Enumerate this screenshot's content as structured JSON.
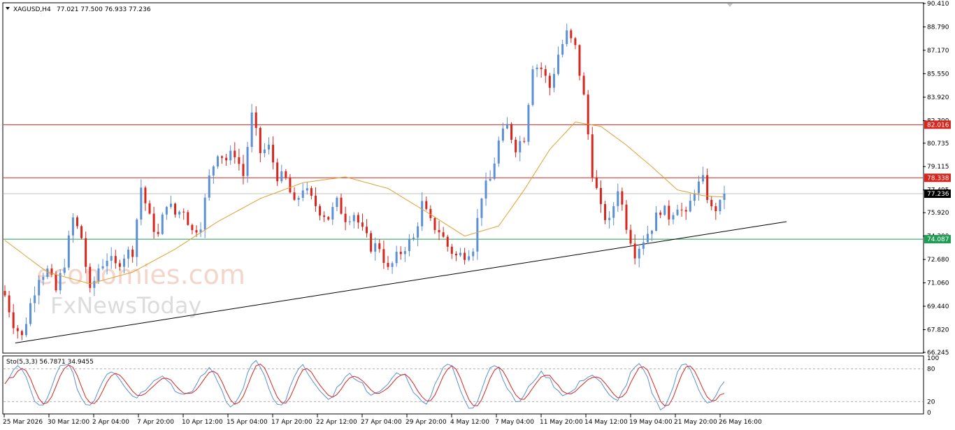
{
  "header": {
    "symbol": "XAGUSD,H4",
    "ohlc": "77.021 77.500 76.933 77.236"
  },
  "watermark": {
    "line1": "economies.com",
    "line2": "FxNewsToday"
  },
  "indicator": {
    "label": "Sto(5,3,3) 56.7871 34.9455",
    "levels": [
      "100",
      "80",
      "20",
      "0"
    ]
  },
  "colors": {
    "bull": "#5b8fd6",
    "bear": "#d7261e",
    "ma": "#e0a030",
    "resistance": "#d7261e",
    "support": "#1f9d55",
    "trendline": "#000000",
    "current": "#000000",
    "stoch_main": "#5b8fd6",
    "stoch_signal": "#d7261e"
  },
  "chart_data": {
    "type": "candlestick",
    "symbol": "XAGUSD",
    "timeframe": "H4",
    "y_ticks": [
      "90.410",
      "88.790",
      "87.170",
      "85.550",
      "83.920",
      "82.300",
      "80.735",
      "79.115",
      "77.495",
      "75.920",
      "74.300",
      "72.680",
      "71.060",
      "69.440",
      "67.820",
      "66.245"
    ],
    "ylim": [
      66.245,
      90.41
    ],
    "x_ticks": [
      "25 Mar 2026",
      "30 Mar 12:00",
      "2 Apr 04:00",
      "7 Apr 20:00",
      "10 Apr 12:00",
      "15 Apr 04:00",
      "17 Apr 20:00",
      "22 Apr 12:00",
      "27 Apr 04:00",
      "29 Apr 20:00",
      "4 May 12:00",
      "7 May 04:00",
      "11 May 20:00",
      "14 May 12:00",
      "19 May 04:00",
      "21 May 20:00",
      "26 May 16:00"
    ],
    "price_levels": [
      {
        "value": "82.016",
        "role": "resistance"
      },
      {
        "value": "78.338",
        "role": "resistance"
      },
      {
        "value": "77.236",
        "role": "current"
      },
      {
        "value": "74.087",
        "role": "support"
      }
    ],
    "trendline": {
      "start": [
        "25 Mar 2026",
        66.9
      ],
      "end": [
        "26 May 16:00",
        75.3
      ]
    },
    "close_path": [
      [
        0,
        70.2
      ],
      [
        2,
        68.3
      ],
      [
        4,
        67.3
      ],
      [
        6,
        69.6
      ],
      [
        8,
        71.6
      ],
      [
        10,
        71.9
      ],
      [
        12,
        70.5
      ],
      [
        14,
        72.5
      ],
      [
        16,
        75.5
      ],
      [
        18,
        74.2
      ],
      [
        20,
        70.3
      ],
      [
        22,
        72.1
      ],
      [
        24,
        72.8
      ],
      [
        26,
        72.2
      ],
      [
        28,
        73.0
      ],
      [
        30,
        73.3
      ],
      [
        32,
        77.7
      ],
      [
        34,
        75.5
      ],
      [
        36,
        74.3
      ],
      [
        38,
        76.7
      ],
      [
        40,
        75.8
      ],
      [
        42,
        76.2
      ],
      [
        44,
        74.6
      ],
      [
        46,
        75.2
      ],
      [
        48,
        78.3
      ],
      [
        50,
        80.2
      ],
      [
        52,
        79.6
      ],
      [
        54,
        80.1
      ],
      [
        56,
        78.5
      ],
      [
        58,
        82.6
      ],
      [
        60,
        80.1
      ],
      [
        62,
        80.4
      ],
      [
        64,
        78.5
      ],
      [
        66,
        78.2
      ],
      [
        68,
        76.4
      ],
      [
        70,
        77.7
      ],
      [
        72,
        76.8
      ],
      [
        74,
        76.1
      ],
      [
        76,
        75.6
      ],
      [
        78,
        76.6
      ],
      [
        80,
        75.6
      ],
      [
        82,
        75.9
      ],
      [
        84,
        74.6
      ],
      [
        86,
        73.6
      ],
      [
        88,
        73.6
      ],
      [
        90,
        71.9
      ],
      [
        92,
        72.8
      ],
      [
        94,
        73.6
      ],
      [
        96,
        74.1
      ],
      [
        98,
        76.5
      ],
      [
        100,
        75.2
      ],
      [
        102,
        74.7
      ],
      [
        104,
        73.6
      ],
      [
        106,
        72.9
      ],
      [
        108,
        73.1
      ],
      [
        110,
        73.6
      ],
      [
        112,
        77.2
      ],
      [
        114,
        78.2
      ],
      [
        116,
        80.8
      ],
      [
        118,
        81.9
      ],
      [
        120,
        80.5
      ],
      [
        122,
        81.2
      ],
      [
        124,
        86.2
      ],
      [
        126,
        85.9
      ],
      [
        128,
        84.6
      ],
      [
        130,
        86.9
      ],
      [
        132,
        88.3
      ],
      [
        134,
        87.3
      ],
      [
        136,
        83.9
      ],
      [
        138,
        78.8
      ],
      [
        140,
        76.1
      ],
      [
        142,
        75.2
      ],
      [
        144,
        77.7
      ],
      [
        146,
        75.1
      ],
      [
        148,
        73.2
      ],
      [
        150,
        74.1
      ],
      [
        152,
        75.0
      ],
      [
        154,
        76.2
      ],
      [
        156,
        75.7
      ],
      [
        158,
        76.5
      ],
      [
        160,
        75.6
      ],
      [
        162,
        77.6
      ],
      [
        164,
        78.1
      ],
      [
        166,
        76.1
      ],
      [
        168,
        76.4
      ],
      [
        169,
        77.236
      ]
    ],
    "ma_path": [
      [
        0,
        74.0
      ],
      [
        10,
        71.8
      ],
      [
        20,
        71.0
      ],
      [
        30,
        71.8
      ],
      [
        40,
        73.4
      ],
      [
        50,
        75.3
      ],
      [
        60,
        76.9
      ],
      [
        70,
        78.0
      ],
      [
        80,
        78.4
      ],
      [
        90,
        77.6
      ],
      [
        100,
        75.8
      ],
      [
        108,
        74.3
      ],
      [
        116,
        75.0
      ],
      [
        122,
        77.5
      ],
      [
        128,
        80.3
      ],
      [
        134,
        82.2
      ],
      [
        140,
        81.9
      ],
      [
        146,
        80.6
      ],
      [
        152,
        79.1
      ],
      [
        158,
        77.5
      ],
      [
        164,
        77.1
      ],
      [
        169,
        77.0
      ]
    ],
    "stochastic": {
      "params": "5,3,3",
      "main_value": 56.7871,
      "signal_value": 34.9455,
      "levels": [
        100,
        80,
        20,
        0
      ]
    }
  }
}
